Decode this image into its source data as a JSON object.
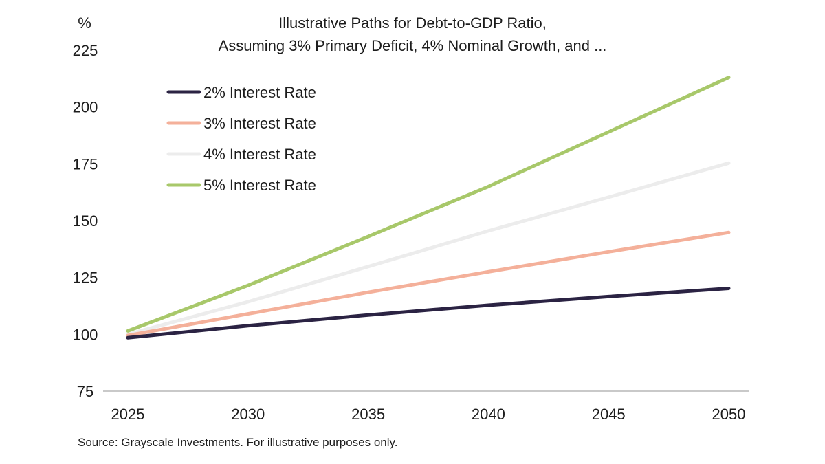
{
  "colors": {
    "axis": "#c9c9c9",
    "text": "#1c1c1c"
  },
  "chart_data": {
    "type": "line",
    "title": "Illustrative Paths for Debt-to-GDP Ratio,",
    "subtitle": "Assuming 3% Primary Deficit, 4% Nominal Growth, and ...",
    "ylabel": "%",
    "xlabel": "",
    "source": "Source: Grayscale Investments. For illustrative purposes only.",
    "xlim": [
      2025,
      2050
    ],
    "ylim": [
      75,
      225
    ],
    "xticks": [
      "2025",
      "2030",
      "2035",
      "2040",
      "2045",
      "2050"
    ],
    "yticks": [
      "75",
      "100",
      "125",
      "150",
      "175",
      "200",
      "225"
    ],
    "grid": false,
    "legend_position": "top-left",
    "x": [
      2025,
      2030,
      2035,
      2040,
      2045,
      2050
    ],
    "series": [
      {
        "name": "2% Interest Rate",
        "color": "#2b2343",
        "values": [
          98.5,
          103.8,
          108.5,
          112.8,
          116.6,
          120.2
        ]
      },
      {
        "name": "3% Interest Rate",
        "color": "#f4b09a",
        "values": [
          99.5,
          109.0,
          118.5,
          127.5,
          136.3,
          144.8
        ]
      },
      {
        "name": "4% Interest Rate",
        "color": "#ececec",
        "values": [
          100.0,
          114.3,
          129.8,
          145.5,
          160.3,
          175.3
        ]
      },
      {
        "name": "5% Interest Rate",
        "color": "#a8c86a",
        "values": [
          101.5,
          121.5,
          143.0,
          165.0,
          189.0,
          213.0
        ]
      }
    ]
  }
}
